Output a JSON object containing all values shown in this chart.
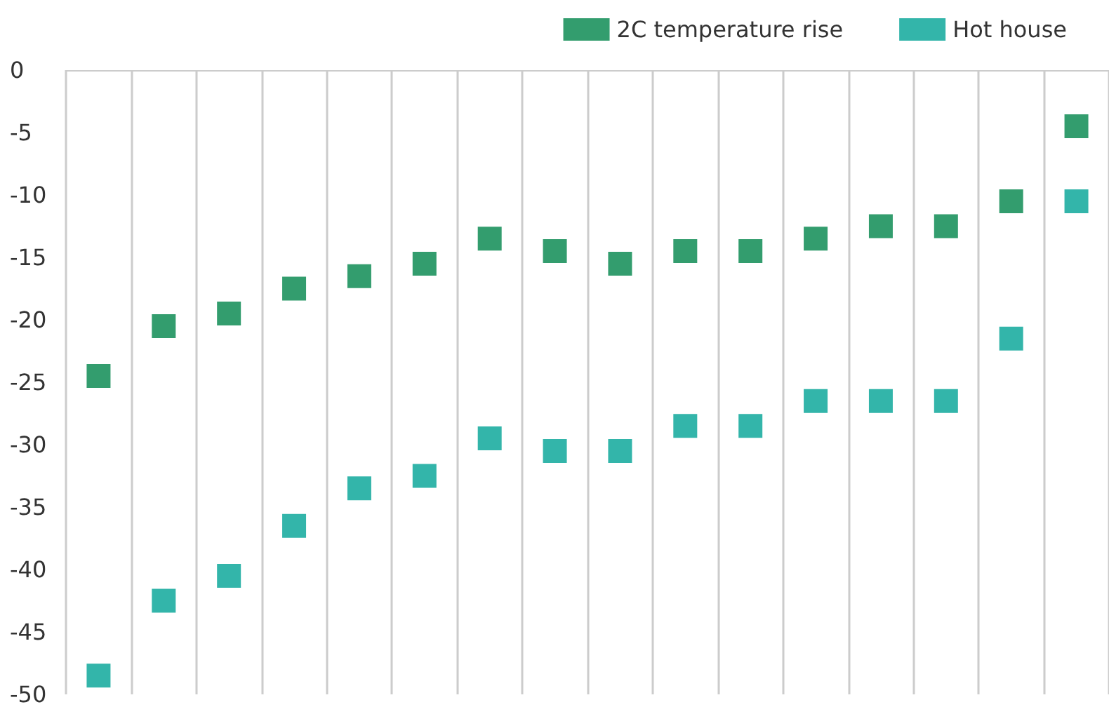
{
  "chart_data": {
    "type": "scatter",
    "categories": [
      null,
      null,
      null,
      null,
      null,
      null,
      null,
      null,
      null,
      null,
      null,
      null,
      null,
      null,
      null,
      null
    ],
    "series": [
      {
        "name": "2C temperature rise",
        "color": "#00844a",
        "values": [
          -24.5,
          -20.5,
          -19.5,
          -17.5,
          -16.5,
          -15.5,
          -13.5,
          -14.5,
          -15.5,
          -14.5,
          -14.5,
          -13.5,
          -12.5,
          -12.5,
          -10.5,
          -4.5
        ]
      },
      {
        "name": "Hot house",
        "color": "#00a295",
        "values": [
          -48.5,
          -42.5,
          -40.5,
          -36.5,
          -33.5,
          -32.5,
          -29.5,
          -30.5,
          -30.5,
          -28.5,
          -28.5,
          -26.5,
          -26.5,
          -26.5,
          -21.5,
          -10.5
        ]
      }
    ],
    "ylim": [
      -50,
      0
    ],
    "yticks": [
      -50,
      -45,
      -40,
      -35,
      -30,
      -25,
      -20,
      -15,
      -10,
      -5,
      0
    ],
    "grid": "x",
    "legend": "top right",
    "marker": "square"
  }
}
